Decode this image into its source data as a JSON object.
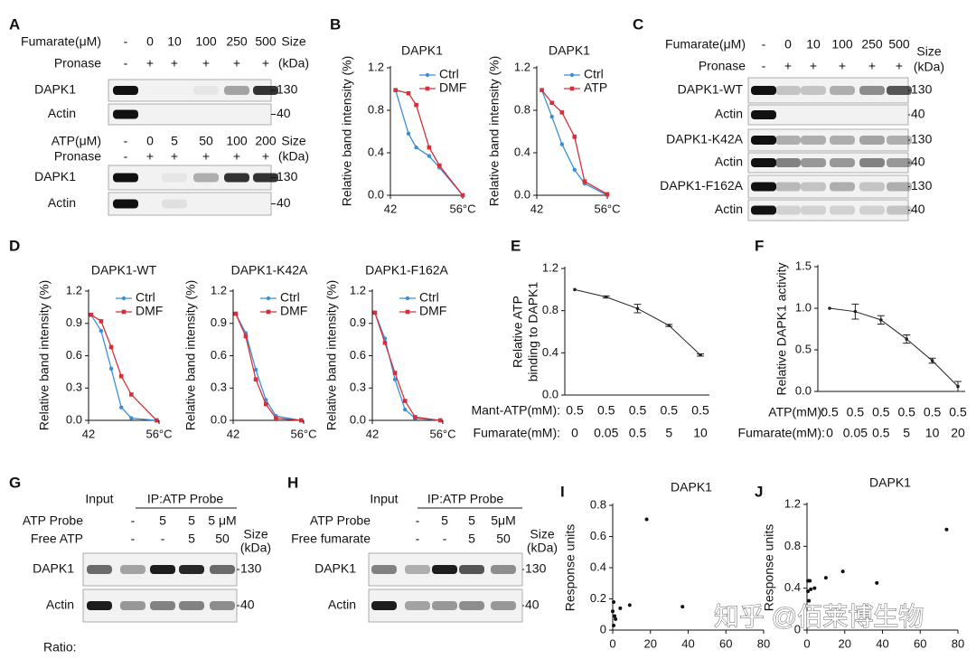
{
  "panel_letters": [
    "A",
    "B",
    "C",
    "D",
    "E",
    "F",
    "G",
    "H",
    "I",
    "J"
  ],
  "watermark": "知乎 @佰莱博生物",
  "blots": [
    {
      "sections": [
        {
          "header_rows": [
            {
              "label": "Fumarate(μM)",
              "cells": [
                "-",
                "0",
                "10",
                "100",
                "250",
                "500"
              ]
            },
            {
              "label": "Pronase",
              "cells": [
                "-",
                "+",
                "+",
                "+",
                "+",
                "+"
              ]
            }
          ],
          "size_header": [
            "Size",
            "(kDa)"
          ],
          "bands": [
            {
              "label": "DAPK1",
              "size": 130
            },
            {
              "label": "Actin",
              "size": 40
            }
          ]
        },
        {
          "header_rows": [
            {
              "label": "ATP(μM)",
              "cells": [
                "-",
                "0",
                "5",
                "50",
                "100",
                "200"
              ]
            },
            {
              "label": "Pronase",
              "cells": [
                "-",
                "+",
                "+",
                "+",
                "+",
                "+"
              ]
            }
          ],
          "size_header": [
            "Size",
            "(kDa)"
          ],
          "bands": [
            {
              "label": "DAPK1",
              "size": 130
            },
            {
              "label": "Actin",
              "size": 40
            }
          ]
        }
      ]
    },
    {
      "sections": [
        {
          "header_rows": [
            {
              "label": "Fumarate(μM)",
              "cells": [
                "-",
                "0",
                "10",
                "100",
                "250",
                "500"
              ]
            },
            {
              "label": "Pronase",
              "cells": [
                "-",
                "+",
                "+",
                "+",
                "+",
                "+"
              ]
            }
          ],
          "size_header": [
            "Size",
            "(kDa)"
          ],
          "bands": [
            {
              "label": "DAPK1-WT",
              "size": 130
            },
            {
              "label": "Actin",
              "size": 40
            },
            {
              "label": "DAPK1-K42A",
              "size": 130
            },
            {
              "label": "Actin",
              "size": 40
            },
            {
              "label": "DAPK1-F162A",
              "size": 130
            },
            {
              "label": "Actin",
              "size": 40
            }
          ]
        }
      ]
    },
    {
      "top_labels": [
        "Input",
        "IP:ATP Probe"
      ],
      "sections": [
        {
          "header_rows": [
            {
              "label": "ATP Probe",
              "cells": [
                null,
                "-",
                "5",
                "5",
                "5 μM"
              ]
            },
            {
              "label": "Free ATP",
              "cells": [
                null,
                "-",
                "-",
                "5",
                "50"
              ]
            }
          ],
          "size_header": [
            "Size",
            "(kDa)"
          ],
          "bands": [
            {
              "label": "DAPK1",
              "size": 130
            },
            {
              "label": "Actin",
              "size": 40
            }
          ]
        }
      ],
      "footer": "Ratio:"
    },
    {
      "top_labels": [
        "Input",
        "IP:ATP Probe"
      ],
      "sections": [
        {
          "header_rows": [
            {
              "label": "ATP Probe",
              "cells": [
                null,
                "-",
                "5",
                "5",
                "5μM"
              ]
            },
            {
              "label": "Free fumarate",
              "cells": [
                null,
                "-",
                "-",
                "5",
                "50"
              ]
            }
          ],
          "size_header": [
            "Size",
            "(kDa)"
          ],
          "bands": [
            {
              "label": "DAPK1",
              "size": 130
            },
            {
              "label": "Actin",
              "size": 40
            }
          ]
        }
      ]
    }
  ],
  "chart_data": [
    {
      "type": "line",
      "title": "DAPK1",
      "ylabel": "Relative band intensity (%)",
      "legend": "upper right",
      "x": [
        43,
        45.5,
        47,
        49.5,
        51.5,
        56
      ],
      "xlim": [
        42,
        56
      ],
      "xticks": [
        42,
        {
          "value": 56,
          "label": "56°C"
        }
      ],
      "ylim": [
        0,
        1.2
      ],
      "yticks": [
        {
          "value": 0,
          "label": "0.0"
        },
        0.4,
        0.8,
        1.2
      ],
      "series": [
        {
          "name": "Ctrl",
          "color": "#3a8fd8",
          "values": [
            0.99,
            0.58,
            0.45,
            0.37,
            0.26,
            0
          ]
        },
        {
          "name": "DMF",
          "color": "#d62f3a",
          "values": [
            0.99,
            0.96,
            0.85,
            0.45,
            0.28,
            0
          ]
        }
      ]
    },
    {
      "type": "line",
      "title": "DAPK1",
      "ylabel": "Relative band intensity (%)",
      "legend": "upper right",
      "x": [
        43,
        45,
        47,
        49.5,
        51.5,
        56
      ],
      "xlim": [
        42,
        56
      ],
      "xticks": [
        42,
        {
          "value": 56,
          "label": "56°C"
        }
      ],
      "ylim": [
        0,
        1.2
      ],
      "yticks": [
        {
          "value": 0,
          "label": "0.0"
        },
        0.4,
        0.8,
        1.2
      ],
      "series": [
        {
          "name": "Ctrl",
          "color": "#3a8fd8",
          "values": [
            0.99,
            0.74,
            0.48,
            0.24,
            0.11,
            0
          ]
        },
        {
          "name": "ATP",
          "color": "#d62f3a",
          "values": [
            0.99,
            0.87,
            0.78,
            0.55,
            0.13,
            0.01
          ]
        }
      ]
    },
    {
      "type": "line",
      "title": "DAPK1-WT",
      "ylabel": "Relative band intensity (%)",
      "legend": "upper right",
      "x": [
        42.5,
        44.5,
        46.5,
        48.5,
        50.5,
        55.5
      ],
      "xlim": [
        42,
        56
      ],
      "xticks": [
        42,
        {
          "value": 56,
          "label": "56°C"
        }
      ],
      "ylim": [
        0,
        1.2
      ],
      "yticks": [
        {
          "value": 0,
          "label": "0.0"
        },
        0.3,
        0.6,
        0.9,
        1.2
      ],
      "series": [
        {
          "name": "Ctrl",
          "color": "#3a8fd8",
          "values": [
            0.98,
            0.83,
            0.48,
            0.12,
            0.02,
            0
          ]
        },
        {
          "name": "DMF",
          "color": "#d62f3a",
          "values": [
            0.98,
            0.92,
            0.68,
            0.41,
            0.24,
            0
          ]
        }
      ]
    },
    {
      "type": "line",
      "title": "DAPK1-K42A",
      "ylabel": "Relative band intensity (%)",
      "legend": "upper right",
      "x": [
        42.5,
        44.5,
        46.5,
        48.5,
        50.5,
        55.5
      ],
      "xlim": [
        42,
        56
      ],
      "xticks": [
        42,
        {
          "value": 56,
          "label": "56°C"
        }
      ],
      "ylim": [
        0,
        1.2
      ],
      "yticks": [
        {
          "value": 0,
          "label": "0.0"
        },
        0.3,
        0.6,
        0.9,
        1.2
      ],
      "series": [
        {
          "name": "Ctrl",
          "color": "#3a8fd8",
          "values": [
            0.99,
            0.81,
            0.47,
            0.19,
            0.04,
            0
          ]
        },
        {
          "name": "DMF",
          "color": "#d62f3a",
          "values": [
            0.99,
            0.78,
            0.38,
            0.15,
            0.02,
            0
          ]
        }
      ]
    },
    {
      "type": "line",
      "title": "DAPK1-F162A",
      "ylabel": "Relative band intensity (%)",
      "legend": "upper right",
      "x": [
        42.5,
        44.5,
        46.5,
        48.5,
        50.5,
        55.5
      ],
      "xlim": [
        42,
        56
      ],
      "xticks": [
        42,
        {
          "value": 56,
          "label": "56°C"
        }
      ],
      "ylim": [
        0,
        1.2
      ],
      "yticks": [
        {
          "value": 0,
          "label": "0.0"
        },
        0.3,
        0.6,
        0.9,
        1.2
      ],
      "series": [
        {
          "name": "Ctrl",
          "color": "#3a8fd8",
          "values": [
            1.0,
            0.76,
            0.38,
            0.1,
            0.02,
            0
          ]
        },
        {
          "name": "DMF",
          "color": "#d62f3a",
          "values": [
            1.0,
            0.72,
            0.44,
            0.18,
            0.03,
            0
          ]
        }
      ]
    },
    {
      "type": "line",
      "ylabel": [
        "Relative ATP",
        "binding to DAPK1"
      ],
      "top_row": {
        "label": "Mant-ATP(mM):",
        "labels": [
          "0.5",
          "0.5",
          "0.5",
          "0.5",
          "0.5"
        ]
      },
      "category_label": "Fumarate(mM):",
      "categories": [
        "0",
        "0.05",
        "0.5",
        "5",
        "10"
      ],
      "ylim": [
        0,
        1.2
      ],
      "yticks": [
        {
          "value": 0,
          "label": "0.0"
        },
        0.4,
        0.8,
        1.2
      ],
      "color": "#222",
      "values": [
        1.0,
        0.93,
        0.82,
        0.66,
        0.38
      ],
      "errors": [
        0,
        0.01,
        0.04,
        0.01,
        0.01
      ]
    },
    {
      "type": "line",
      "ylabel": "Relative DAPK1 activity",
      "top_row": {
        "label": "ATP(mM):",
        "labels": [
          "0.5",
          "0.5",
          "0.5",
          "0.5",
          "0.5",
          "0.5"
        ]
      },
      "category_label": "Fumarate(mM):",
      "categories": [
        "0",
        "0.05",
        "0.5",
        "5",
        "10",
        "20"
      ],
      "ylim": [
        0,
        1.5
      ],
      "yticks": [
        {
          "value": 0,
          "label": "0.0"
        },
        0.5,
        {
          "value": 1,
          "label": "1.0"
        },
        1.5
      ],
      "color": "#222",
      "values": [
        1.0,
        0.96,
        0.86,
        0.63,
        0.37,
        0.06
      ],
      "errors": [
        0,
        0.09,
        0.05,
        0.05,
        0.03,
        0.06
      ]
    },
    {
      "type": "scatter",
      "title": "DAPK1",
      "ylabel": "Response units",
      "color": "#111",
      "x": [
        0.5,
        0,
        1.5,
        4,
        9,
        18,
        37,
        0.5,
        1
      ],
      "y": [
        0.18,
        0.12,
        0.07,
        0.14,
        0.16,
        0.71,
        0.15,
        0.03,
        0.09
      ],
      "xlim": [
        0,
        80
      ],
      "xticks": [
        0,
        20,
        40,
        60,
        80
      ],
      "ylim": [
        0,
        0.8
      ],
      "yticks": [
        0,
        0.2,
        0.4,
        0.6,
        0.8
      ]
    },
    {
      "type": "scatter",
      "title": "DAPK1",
      "ylabel": "Response units",
      "color": "#111",
      "x": [
        0.5,
        1.5,
        4,
        10,
        19,
        37,
        74,
        0.5,
        2,
        1
      ],
      "y": [
        0.47,
        0.47,
        0.4,
        0.5,
        0.56,
        0.45,
        0.96,
        0.37,
        0.39,
        0.28
      ],
      "xlim": [
        0,
        80
      ],
      "xticks": [
        0,
        20,
        40,
        60,
        80
      ],
      "ylim": [
        0,
        1.2
      ],
      "yticks": [
        0,
        0.4,
        0.8,
        1.2
      ]
    }
  ]
}
